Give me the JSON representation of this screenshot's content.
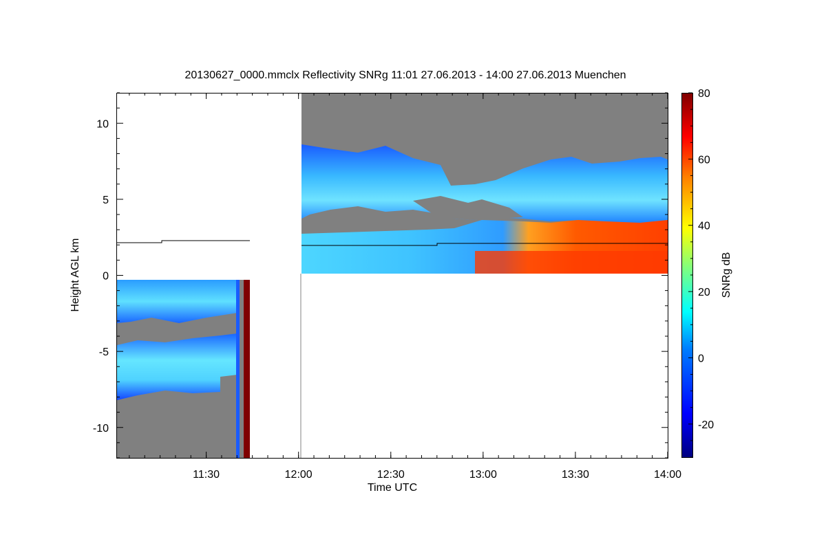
{
  "chart_data": {
    "type": "heatmap",
    "title": "20130627_0000.mmclx Reflectivity SNRg   11:01 27.06.2013 - 14:00 27.06.2013 Muenchen",
    "xlabel": "Time UTC",
    "ylabel": "Height AGL km",
    "colorbar_label": "SNRg dB",
    "xlim": [
      "11:01",
      "14:00"
    ],
    "ylim": [
      -12,
      12
    ],
    "x_ticks": [
      "11:30",
      "12:00",
      "12:30",
      "13:00",
      "13:30",
      "14:00"
    ],
    "y_ticks": [
      10,
      5,
      0,
      -5,
      -10
    ],
    "colorbar_range": [
      -30,
      80
    ],
    "colorbar_ticks": [
      80,
      60,
      40,
      20,
      0,
      -20
    ],
    "colormap": [
      "#00007f",
      "#0000ff",
      "#007fff",
      "#00ffff",
      "#7fff7f",
      "#ffff00",
      "#ff7f00",
      "#ff0000",
      "#7f0000"
    ],
    "no_signal_color": "#808080",
    "segments": [
      {
        "time_range": [
          "11:01",
          "11:44"
        ],
        "height_range_km": [
          -12,
          -0.2
        ],
        "layers": [
          {
            "time_range": [
              "11:01",
              "11:40"
            ],
            "height_range_km": [
              -3,
              -0.2
            ],
            "snr_db": 5
          },
          {
            "time_range": [
              "11:01",
              "11:40"
            ],
            "height_range_km": [
              -7.8,
              -3.8
            ],
            "snr_db": 12
          }
        ],
        "bands": [
          {
            "time_range": [
              "11:40",
              "11:41"
            ],
            "snr_db": -10
          },
          {
            "time_range": [
              "11:42",
              "11:44"
            ],
            "snr_db": 80
          }
        ]
      },
      {
        "time_range": [
          "12:01",
          "14:00"
        ],
        "height_range_km": [
          0.2,
          12
        ],
        "layers": [
          {
            "time_range": [
              "12:01",
              "14:00"
            ],
            "height_range_km": [
              4,
              8.5
            ],
            "snr_db": 8
          },
          {
            "time_range": [
              "12:01",
              "12:55"
            ],
            "height_range_km": [
              0.2,
              3.5
            ],
            "snr_db": 15
          },
          {
            "time_range": [
              "12:55",
              "14:00"
            ],
            "height_range_km": [
              0.2,
              3.5
            ],
            "snr_db": 60
          }
        ]
      }
    ],
    "overlay_line": {
      "segment_1": [
        [
          "11:01",
          2.2
        ],
        [
          "11:16",
          2.2
        ],
        [
          "11:16",
          2.35
        ],
        [
          "11:44",
          2.35
        ]
      ],
      "segment_2": [
        [
          "12:01",
          2.1
        ],
        [
          "12:46",
          2.1
        ],
        [
          "12:46",
          2.2
        ],
        [
          "14:00",
          2.2
        ]
      ]
    }
  }
}
